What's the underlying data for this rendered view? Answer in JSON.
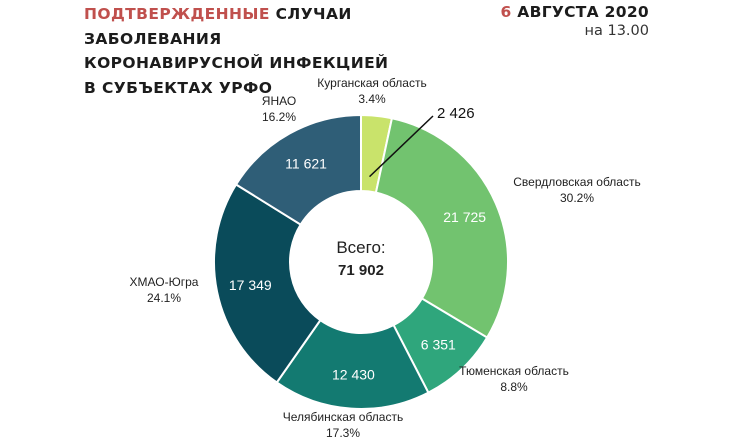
{
  "header": {
    "title_highlight": "ПОДТВЕРЖДЕННЫЕ",
    "title_rest_1": "СЛУЧАИ",
    "title_line_2": "ЗАБОЛЕВАНИЯ",
    "title_line_3": "КОРОНАВИРУСНОЙ ИНФЕКЦИЕЙ",
    "title_line_4": "В СУБЪЕКТАХ УРФО",
    "date_day": "6",
    "date_rest": "АВГУСТА 2020",
    "time": "на 13.00"
  },
  "center": {
    "label": "Всего:",
    "value": "71 902"
  },
  "chart_data": {
    "type": "pie",
    "donut": true,
    "total": 71902,
    "slices": [
      {
        "name": "Курганская область",
        "value": 2426,
        "value_label": "2 426",
        "percent": "3.4%",
        "color": "#c9e36b"
      },
      {
        "name": "Свердловская область",
        "value": 21725,
        "value_label": "21 725",
        "percent": "30.2%",
        "color": "#72c36f"
      },
      {
        "name": "Тюменская область",
        "value": 6351,
        "value_label": "6 351",
        "percent": "8.8%",
        "color": "#2fa67c"
      },
      {
        "name": "Челябинская область",
        "value": 12430,
        "value_label": "12 430",
        "percent": "17.3%",
        "color": "#137a71"
      },
      {
        "name": "ХМАО-Югра",
        "value": 17349,
        "value_label": "17 349",
        "percent": "24.1%",
        "color": "#0a4b5a"
      },
      {
        "name": "ЯНАО",
        "value": 11621,
        "value_label": "11 621",
        "percent": "16.2%",
        "color": "#2f5e77"
      }
    ]
  }
}
